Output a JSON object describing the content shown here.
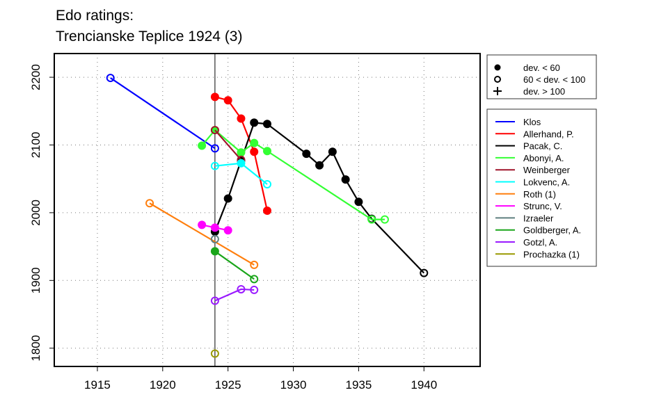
{
  "chart_data": {
    "type": "line",
    "title": [
      "Edo ratings:",
      "Trencianske Teplice 1924 (3)"
    ],
    "xlim": [
      1911.7,
      1944.3
    ],
    "ylim": [
      1773,
      2235
    ],
    "xticks": [
      1915,
      1920,
      1925,
      1930,
      1935,
      1940
    ],
    "yticks": [
      1800,
      1900,
      2000,
      2100,
      2200
    ],
    "grid": true,
    "vline": 1924,
    "symbol_legend": [
      {
        "symbol": "filled",
        "label": "dev. < 60"
      },
      {
        "symbol": "open",
        "label": "60 < dev. < 100"
      },
      {
        "symbol": "plus",
        "label": "dev. > 100"
      }
    ],
    "series": [
      {
        "name": "Klos",
        "color": "#0000ff",
        "points": [
          [
            1916,
            2199,
            "o"
          ],
          [
            1924,
            2095,
            "o"
          ]
        ]
      },
      {
        "name": "Allerhand, P.",
        "color": "#ff0000",
        "points": [
          [
            1924,
            2171,
            "f"
          ],
          [
            1925,
            2166,
            "f"
          ],
          [
            1926,
            2139,
            "f"
          ],
          [
            1927,
            2090,
            "f"
          ],
          [
            1928,
            2003,
            "f"
          ]
        ]
      },
      {
        "name": "Pacak, C.",
        "color": "#000000",
        "points": [
          [
            1924,
            1972,
            "f"
          ],
          [
            1925,
            2021,
            "f"
          ],
          [
            1926,
            2077,
            "f"
          ],
          [
            1927,
            2133,
            "f"
          ],
          [
            1928,
            2131,
            "f"
          ],
          [
            1931,
            2087,
            "f"
          ],
          [
            1932,
            2070,
            "f"
          ],
          [
            1933,
            2090,
            "f"
          ],
          [
            1934,
            2049,
            "f"
          ],
          [
            1935,
            2016,
            "f"
          ],
          [
            1936,
            1991,
            "o"
          ],
          [
            1940,
            1911,
            "o"
          ]
        ]
      },
      {
        "name": "Abonyi, A.",
        "color": "#33ff33",
        "points": [
          [
            1923,
            2099,
            "f"
          ],
          [
            1924,
            2122,
            "f"
          ],
          [
            1926,
            2089,
            "f"
          ],
          [
            1927,
            2103,
            "f"
          ],
          [
            1928,
            2091,
            "f"
          ],
          [
            1936,
            1990,
            "o"
          ],
          [
            1937,
            1990,
            "o"
          ]
        ]
      },
      {
        "name": "Weinberger",
        "color": "#a0142a",
        "points": [
          [
            1924,
            2122,
            "o"
          ],
          [
            1926,
            2078,
            "o"
          ]
        ]
      },
      {
        "name": "Lokvenc, A.",
        "color": "#00ffff",
        "points": [
          [
            1924,
            2069,
            "o"
          ],
          [
            1926,
            2073,
            "f"
          ],
          [
            1928,
            2042,
            "o"
          ]
        ]
      },
      {
        "name": "Roth (1)",
        "color": "#ff7f0e",
        "points": [
          [
            1919,
            2014,
            "o"
          ],
          [
            1927,
            1923,
            "o"
          ]
        ]
      },
      {
        "name": "Strunc, V.",
        "color": "#ff00ff",
        "points": [
          [
            1923,
            1982,
            "f"
          ],
          [
            1924,
            1978,
            "f"
          ],
          [
            1925,
            1974,
            "f"
          ]
        ]
      },
      {
        "name": "Izraeler",
        "color": "#5f7f7f",
        "points": [
          [
            1924,
            1961,
            "o"
          ]
        ]
      },
      {
        "name": "Goldberger, A.",
        "color": "#1aa51a",
        "points": [
          [
            1924,
            1943,
            "f"
          ],
          [
            1927,
            1902,
            "o"
          ]
        ]
      },
      {
        "name": "Gotzl, A.",
        "color": "#9a1aff",
        "points": [
          [
            1924,
            1870,
            "o"
          ],
          [
            1926,
            1887,
            "o"
          ],
          [
            1927,
            1886,
            "o"
          ]
        ]
      },
      {
        "name": "Prochazka (1)",
        "color": "#999900",
        "points": [
          [
            1924,
            1792,
            "o"
          ]
        ]
      }
    ]
  }
}
